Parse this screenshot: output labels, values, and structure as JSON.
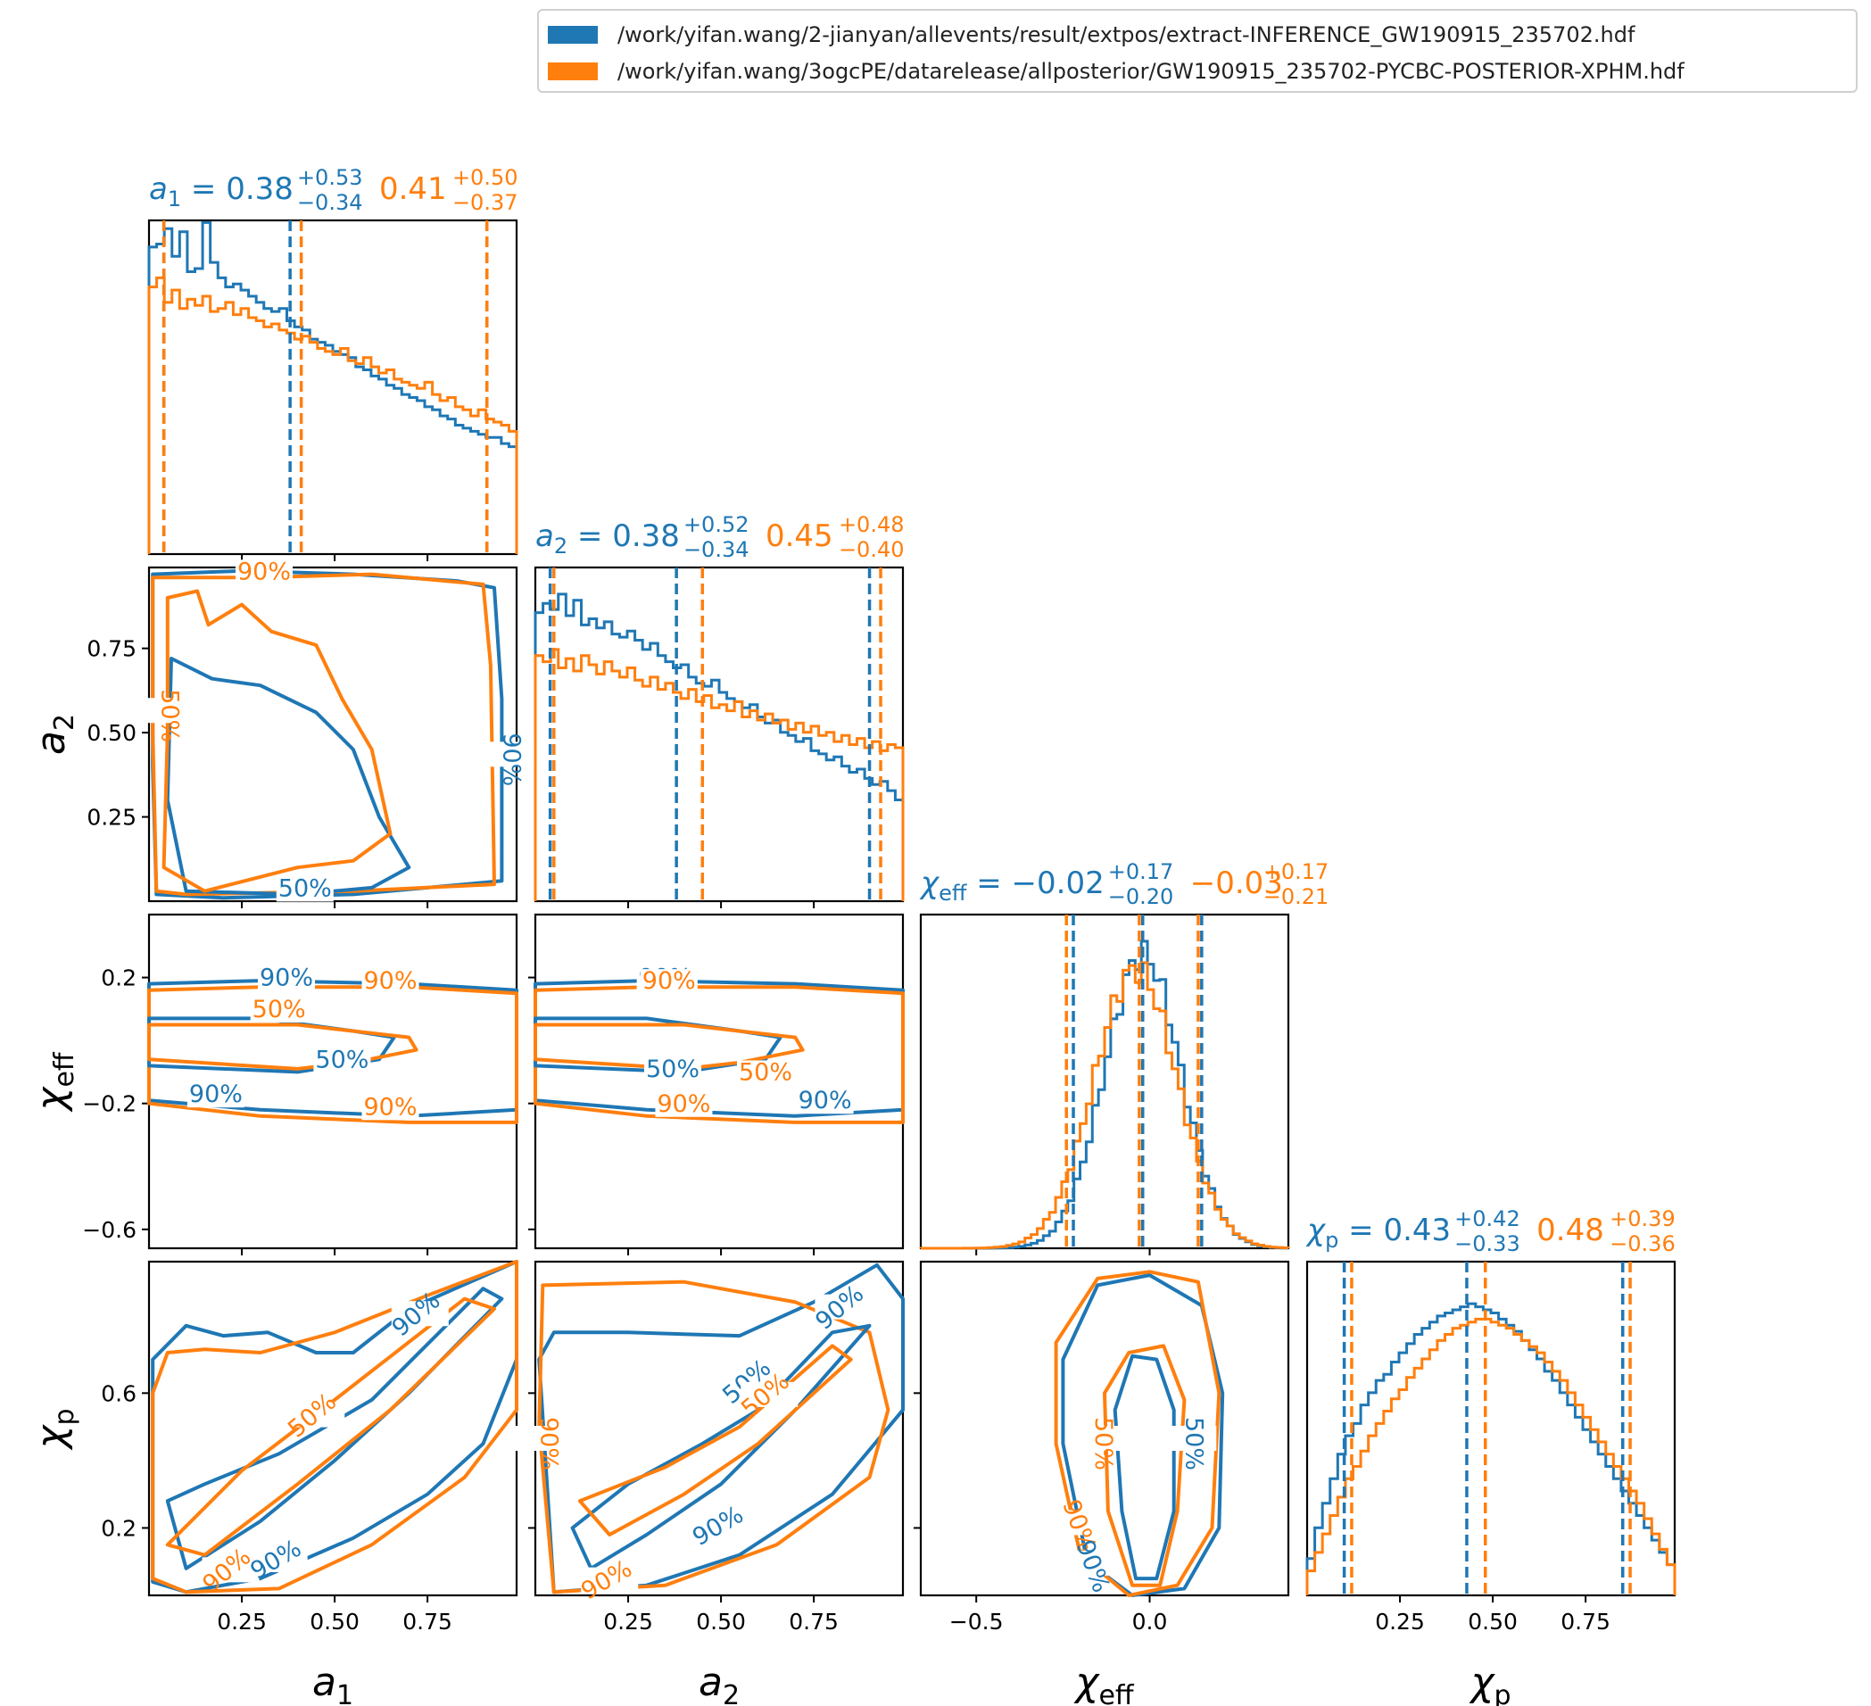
{
  "legend": {
    "entries": [
      {
        "label": "/work/yifan.wang/2-jianyan/allevents/result/extpos/extract-INFERENCE_GW190915_235702.hdf",
        "color": "#1f77b4"
      },
      {
        "label": "/work/yifan.wang/3ogcPE/datarelease/allposterior/GW190915_235702-PYCBC-POSTERIOR-XPHM.hdf",
        "color": "#ff7f0e"
      }
    ]
  },
  "chart_data": {
    "type": "corner",
    "colors": {
      "run1": "#1f77b4",
      "run2": "#ff7f0e"
    },
    "parameters": [
      {
        "key": "a1",
        "symbol": "a",
        "subscript": "1",
        "range": [
          0.0,
          0.99
        ],
        "ticks": [
          0.25,
          0.5,
          0.75
        ],
        "tick_labels": [
          "0.25",
          "0.50",
          "0.75"
        ],
        "estimates": [
          {
            "median": "0.38",
            "plus": "+0.53",
            "minus": "−0.34",
            "m": 0.38,
            "lo": 0.04,
            "hi": 0.91
          },
          {
            "median": "0.41",
            "plus": "+0.50",
            "minus": "−0.37",
            "m": 0.41,
            "lo": 0.04,
            "hi": 0.91
          }
        ],
        "hist": [
          [
            1.0,
            1.01,
            1.06,
            0.97,
            1.05,
            0.92,
            0.93,
            1.08,
            0.95,
            0.9,
            0.87,
            0.88,
            0.86,
            0.84,
            0.82,
            0.8,
            0.79,
            0.8,
            0.76,
            0.74,
            0.73,
            0.7,
            0.69,
            0.68,
            0.66,
            0.65,
            0.64,
            0.61,
            0.6,
            0.58,
            0.57,
            0.55,
            0.54,
            0.52,
            0.51,
            0.5,
            0.48,
            0.47,
            0.45,
            0.44,
            0.42,
            0.41,
            0.4,
            0.39,
            0.38,
            0.38,
            0.36,
            0.35
          ],
          [
            0.87,
            0.9,
            0.82,
            0.86,
            0.8,
            0.83,
            0.81,
            0.84,
            0.79,
            0.8,
            0.82,
            0.78,
            0.8,
            0.77,
            0.76,
            0.74,
            0.75,
            0.73,
            0.72,
            0.7,
            0.71,
            0.69,
            0.67,
            0.66,
            0.65,
            0.67,
            0.63,
            0.62,
            0.64,
            0.61,
            0.59,
            0.6,
            0.57,
            0.56,
            0.55,
            0.54,
            0.56,
            0.52,
            0.5,
            0.51,
            0.48,
            0.47,
            0.45,
            0.47,
            0.44,
            0.43,
            0.42,
            0.4
          ]
        ]
      },
      {
        "key": "a2",
        "symbol": "a",
        "subscript": "2",
        "range": [
          0.0,
          0.99
        ],
        "ticks": [
          0.25,
          0.5,
          0.75
        ],
        "tick_labels": [
          "0.25",
          "0.50",
          "0.75"
        ],
        "estimates": [
          {
            "median": "0.38",
            "plus": "+0.52",
            "minus": "−0.34",
            "m": 0.38,
            "lo": 0.04,
            "hi": 0.9
          },
          {
            "median": "0.45",
            "plus": "+0.48",
            "minus": "−0.40",
            "m": 0.45,
            "lo": 0.05,
            "hi": 0.93
          }
        ],
        "hist": [
          [
            0.94,
            0.97,
            0.95,
            1.0,
            0.93,
            0.98,
            0.9,
            0.92,
            0.89,
            0.91,
            0.87,
            0.86,
            0.88,
            0.85,
            0.82,
            0.84,
            0.8,
            0.78,
            0.76,
            0.77,
            0.73,
            0.71,
            0.7,
            0.72,
            0.68,
            0.66,
            0.65,
            0.63,
            0.64,
            0.6,
            0.58,
            0.59,
            0.55,
            0.54,
            0.52,
            0.53,
            0.49,
            0.48,
            0.46,
            0.47,
            0.44,
            0.42,
            0.43,
            0.4,
            0.38,
            0.39,
            0.36,
            0.33
          ],
          [
            0.8,
            0.78,
            0.82,
            0.76,
            0.79,
            0.75,
            0.8,
            0.77,
            0.74,
            0.78,
            0.75,
            0.73,
            0.76,
            0.72,
            0.7,
            0.73,
            0.69,
            0.71,
            0.68,
            0.66,
            0.69,
            0.65,
            0.67,
            0.63,
            0.64,
            0.62,
            0.65,
            0.6,
            0.62,
            0.59,
            0.61,
            0.58,
            0.59,
            0.56,
            0.58,
            0.55,
            0.57,
            0.54,
            0.55,
            0.52,
            0.54,
            0.51,
            0.53,
            0.5,
            0.52,
            0.49,
            0.51,
            0.5
          ]
        ]
      },
      {
        "key": "chi_eff",
        "symbol": "χ",
        "subscript": "eff",
        "range": [
          -0.66,
          0.4
        ],
        "ticks": [
          -0.6,
          -0.2,
          0.2
        ],
        "tick_labels": [
          "−0.6",
          "−0.2",
          "0.2"
        ],
        "xticks": [
          -0.5,
          0.0
        ],
        "xtick_labels": [
          "−0.5",
          "0.0"
        ],
        "estimates": [
          {
            "median": "−0.02",
            "plus": "+0.17",
            "minus": "−0.20",
            "m": -0.02,
            "lo": -0.22,
            "hi": 0.15
          },
          {
            "median": "−0.03",
            "plus": "+0.17",
            "minus": "−0.21",
            "m": -0.03,
            "lo": -0.24,
            "hi": 0.14
          }
        ]
      },
      {
        "key": "chi_p",
        "symbol": "χ",
        "subscript": "p",
        "range": [
          0.0,
          0.99
        ],
        "ticks": [
          0.2,
          0.6
        ],
        "tick_labels": [
          "0.2",
          "0.6"
        ],
        "xticks": [
          0.25,
          0.5,
          0.75
        ],
        "xtick_labels": [
          "0.25",
          "0.50",
          "0.75"
        ],
        "estimates": [
          {
            "median": "0.43",
            "plus": "+0.42",
            "minus": "−0.33",
            "m": 0.43,
            "lo": 0.1,
            "hi": 0.85
          },
          {
            "median": "0.48",
            "plus": "+0.39",
            "minus": "−0.36",
            "m": 0.48,
            "lo": 0.12,
            "hi": 0.87
          }
        ],
        "hist": [
          [
            0.12,
            0.22,
            0.3,
            0.38,
            0.46,
            0.52,
            0.56,
            0.62,
            0.66,
            0.7,
            0.72,
            0.76,
            0.79,
            0.82,
            0.85,
            0.87,
            0.89,
            0.91,
            0.92,
            0.93,
            0.94,
            0.95,
            0.94,
            0.93,
            0.92,
            0.9,
            0.88,
            0.86,
            0.83,
            0.8,
            0.77,
            0.73,
            0.7,
            0.66,
            0.62,
            0.58,
            0.54,
            0.5,
            0.46,
            0.42,
            0.38,
            0.34,
            0.3,
            0.26,
            0.22,
            0.18,
            0.14,
            0.1
          ],
          [
            0.08,
            0.14,
            0.2,
            0.26,
            0.32,
            0.38,
            0.42,
            0.47,
            0.52,
            0.56,
            0.6,
            0.64,
            0.67,
            0.71,
            0.74,
            0.77,
            0.8,
            0.83,
            0.85,
            0.87,
            0.88,
            0.89,
            0.9,
            0.9,
            0.89,
            0.88,
            0.87,
            0.85,
            0.83,
            0.81,
            0.79,
            0.76,
            0.73,
            0.7,
            0.66,
            0.62,
            0.58,
            0.54,
            0.5,
            0.46,
            0.42,
            0.38,
            0.34,
            0.3,
            0.25,
            0.2,
            0.15,
            0.1
          ]
        ]
      }
    ],
    "contour_labels": [
      "50%",
      "90%"
    ]
  }
}
